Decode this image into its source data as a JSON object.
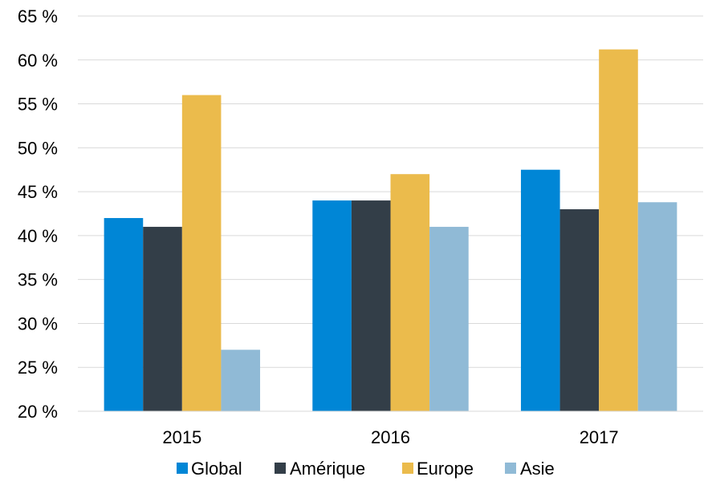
{
  "chart_data": {
    "type": "bar",
    "categories": [
      "2015",
      "2016",
      "2017"
    ],
    "series": [
      {
        "name": "Global",
        "color": "#0086d6",
        "values": [
          42,
          44,
          47.5
        ]
      },
      {
        "name": "Amérique",
        "color": "#333e48",
        "values": [
          41,
          44,
          43
        ]
      },
      {
        "name": "Europe",
        "color": "#ebbb4c",
        "values": [
          56,
          47,
          61.2
        ]
      },
      {
        "name": "Asie",
        "color": "#90bad6",
        "values": [
          27,
          41,
          43.8
        ]
      }
    ],
    "ylim": [
      20,
      65
    ],
    "yticks": [
      20,
      25,
      30,
      35,
      40,
      45,
      50,
      55,
      60,
      65
    ],
    "ytick_labels": [
      "20 %",
      "25 %",
      "30 %",
      "35 %",
      "40 %",
      "45 %",
      "50 %",
      "55 %",
      "60 %",
      "65 %"
    ],
    "grid": true,
    "gridline_color": "#d9d9d9",
    "legend_position": "bottom"
  }
}
